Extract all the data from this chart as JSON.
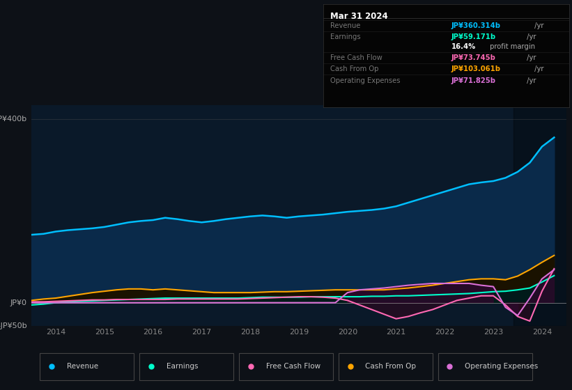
{
  "background_color": "#0d1117",
  "plot_bg_color": "#0a1929",
  "title_box_bg": "#0a0a0a",
  "ylim": [
    -50,
    430
  ],
  "xlim_start": 2013.5,
  "xlim_end": 2024.5,
  "xticks": [
    2014,
    2015,
    2016,
    2017,
    2018,
    2019,
    2020,
    2021,
    2022,
    2023,
    2024
  ],
  "info_box": {
    "date": "Mar 31 2024",
    "rows": [
      {
        "label": "Revenue",
        "value": "JP¥360.314b",
        "unit": " /yr",
        "value_color": "#00bfff"
      },
      {
        "label": "Earnings",
        "value": "JP¥59.171b",
        "unit": " /yr",
        "value_color": "#00ffcc"
      },
      {
        "label": "",
        "value": "16.4%",
        "unit": " profit margin",
        "value_color": "#ffffff"
      },
      {
        "label": "Free Cash Flow",
        "value": "JP¥73.745b",
        "unit": " /yr",
        "value_color": "#ff69b4"
      },
      {
        "label": "Cash From Op",
        "value": "JP¥103.061b",
        "unit": " /yr",
        "value_color": "#ffa500"
      },
      {
        "label": "Operating Expenses",
        "value": "JP¥71.825b",
        "unit": " /yr",
        "value_color": "#da70d6"
      }
    ]
  },
  "revenue_x": [
    2013.5,
    2013.75,
    2014.0,
    2014.25,
    2014.5,
    2014.75,
    2015.0,
    2015.25,
    2015.5,
    2015.75,
    2016.0,
    2016.25,
    2016.5,
    2016.75,
    2017.0,
    2017.25,
    2017.5,
    2017.75,
    2018.0,
    2018.25,
    2018.5,
    2018.75,
    2019.0,
    2019.25,
    2019.5,
    2019.75,
    2020.0,
    2020.25,
    2020.5,
    2020.75,
    2021.0,
    2021.25,
    2021.5,
    2021.75,
    2022.0,
    2022.25,
    2022.5,
    2022.75,
    2023.0,
    2023.25,
    2023.5,
    2023.75,
    2024.0,
    2024.25
  ],
  "revenue_y": [
    148,
    150,
    155,
    158,
    160,
    162,
    165,
    170,
    175,
    178,
    180,
    185,
    182,
    178,
    175,
    178,
    182,
    185,
    188,
    190,
    188,
    185,
    188,
    190,
    192,
    195,
    198,
    200,
    202,
    205,
    210,
    218,
    226,
    234,
    242,
    250,
    258,
    262,
    265,
    272,
    285,
    305,
    340,
    360
  ],
  "earnings_x": [
    2013.5,
    2013.75,
    2014.0,
    2014.25,
    2014.5,
    2014.75,
    2015.0,
    2015.25,
    2015.5,
    2015.75,
    2016.0,
    2016.25,
    2016.5,
    2016.75,
    2017.0,
    2017.25,
    2017.5,
    2017.75,
    2018.0,
    2018.25,
    2018.5,
    2018.75,
    2019.0,
    2019.25,
    2019.5,
    2019.75,
    2020.0,
    2020.25,
    2020.5,
    2020.75,
    2021.0,
    2021.25,
    2021.5,
    2021.75,
    2022.0,
    2022.25,
    2022.5,
    2022.75,
    2023.0,
    2023.25,
    2023.5,
    2023.75,
    2024.0,
    2024.25
  ],
  "earnings_y": [
    -5,
    -3,
    0,
    2,
    3,
    4,
    5,
    6,
    7,
    8,
    9,
    10,
    10,
    10,
    10,
    10,
    10,
    10,
    11,
    12,
    12,
    12,
    12,
    13,
    13,
    13,
    13,
    13,
    14,
    14,
    15,
    15,
    16,
    17,
    18,
    19,
    20,
    22,
    24,
    25,
    28,
    32,
    45,
    59
  ],
  "fcf_x": [
    2013.5,
    2013.75,
    2014.0,
    2014.25,
    2014.5,
    2014.75,
    2015.0,
    2015.25,
    2015.5,
    2015.75,
    2016.0,
    2016.25,
    2016.5,
    2016.75,
    2017.0,
    2017.25,
    2017.5,
    2017.75,
    2018.0,
    2018.25,
    2018.5,
    2018.75,
    2019.0,
    2019.25,
    2019.5,
    2019.75,
    2020.0,
    2020.25,
    2020.5,
    2020.75,
    2021.0,
    2021.25,
    2021.5,
    2021.75,
    2022.0,
    2022.25,
    2022.5,
    2022.75,
    2023.0,
    2023.25,
    2023.5,
    2023.75,
    2024.0,
    2024.25
  ],
  "fcf_y": [
    2,
    2,
    3,
    4,
    5,
    6,
    6,
    7,
    7,
    7,
    7,
    7,
    8,
    8,
    8,
    8,
    8,
    8,
    9,
    10,
    11,
    12,
    13,
    13,
    12,
    10,
    5,
    -5,
    -15,
    -25,
    -35,
    -30,
    -22,
    -15,
    -5,
    5,
    10,
    15,
    15,
    -5,
    -30,
    -40,
    25,
    74
  ],
  "cop_x": [
    2013.5,
    2013.75,
    2014.0,
    2014.25,
    2014.5,
    2014.75,
    2015.0,
    2015.25,
    2015.5,
    2015.75,
    2016.0,
    2016.25,
    2016.5,
    2016.75,
    2017.0,
    2017.25,
    2017.5,
    2017.75,
    2018.0,
    2018.25,
    2018.5,
    2018.75,
    2019.0,
    2019.25,
    2019.5,
    2019.75,
    2020.0,
    2020.25,
    2020.5,
    2020.75,
    2021.0,
    2021.25,
    2021.5,
    2021.75,
    2022.0,
    2022.25,
    2022.5,
    2022.75,
    2023.0,
    2023.25,
    2023.5,
    2023.75,
    2024.0,
    2024.25
  ],
  "cop_y": [
    5,
    8,
    10,
    14,
    18,
    22,
    25,
    28,
    30,
    30,
    28,
    30,
    28,
    26,
    24,
    22,
    22,
    22,
    22,
    23,
    24,
    24,
    25,
    26,
    27,
    28,
    28,
    28,
    28,
    28,
    30,
    32,
    35,
    38,
    42,
    46,
    50,
    52,
    52,
    50,
    58,
    72,
    88,
    103
  ],
  "oe_x": [
    2013.5,
    2013.75,
    2014.0,
    2014.25,
    2014.5,
    2014.75,
    2015.0,
    2015.25,
    2015.5,
    2015.75,
    2016.0,
    2016.25,
    2016.5,
    2016.75,
    2017.0,
    2017.25,
    2017.5,
    2017.75,
    2018.0,
    2018.25,
    2018.5,
    2018.75,
    2019.0,
    2019.25,
    2019.5,
    2019.75,
    2020.0,
    2020.25,
    2020.5,
    2020.75,
    2021.0,
    2021.25,
    2021.5,
    2021.75,
    2022.0,
    2022.25,
    2022.5,
    2022.75,
    2023.0,
    2023.25,
    2023.5,
    2023.75,
    2024.0,
    2024.25
  ],
  "oe_y": [
    0,
    0,
    0,
    0,
    0,
    0,
    0,
    0,
    0,
    0,
    0,
    0,
    0,
    0,
    0,
    0,
    0,
    0,
    0,
    0,
    0,
    0,
    0,
    0,
    0,
    0,
    22,
    28,
    30,
    32,
    35,
    38,
    40,
    42,
    42,
    42,
    42,
    38,
    35,
    -10,
    -28,
    10,
    52,
    72
  ],
  "legend": [
    {
      "label": "Revenue",
      "color": "#00bfff"
    },
    {
      "label": "Earnings",
      "color": "#00ffcc"
    },
    {
      "label": "Free Cash Flow",
      "color": "#ff69b4"
    },
    {
      "label": "Cash From Op",
      "color": "#ffa500"
    },
    {
      "label": "Operating Expenses",
      "color": "#da70d6"
    }
  ]
}
